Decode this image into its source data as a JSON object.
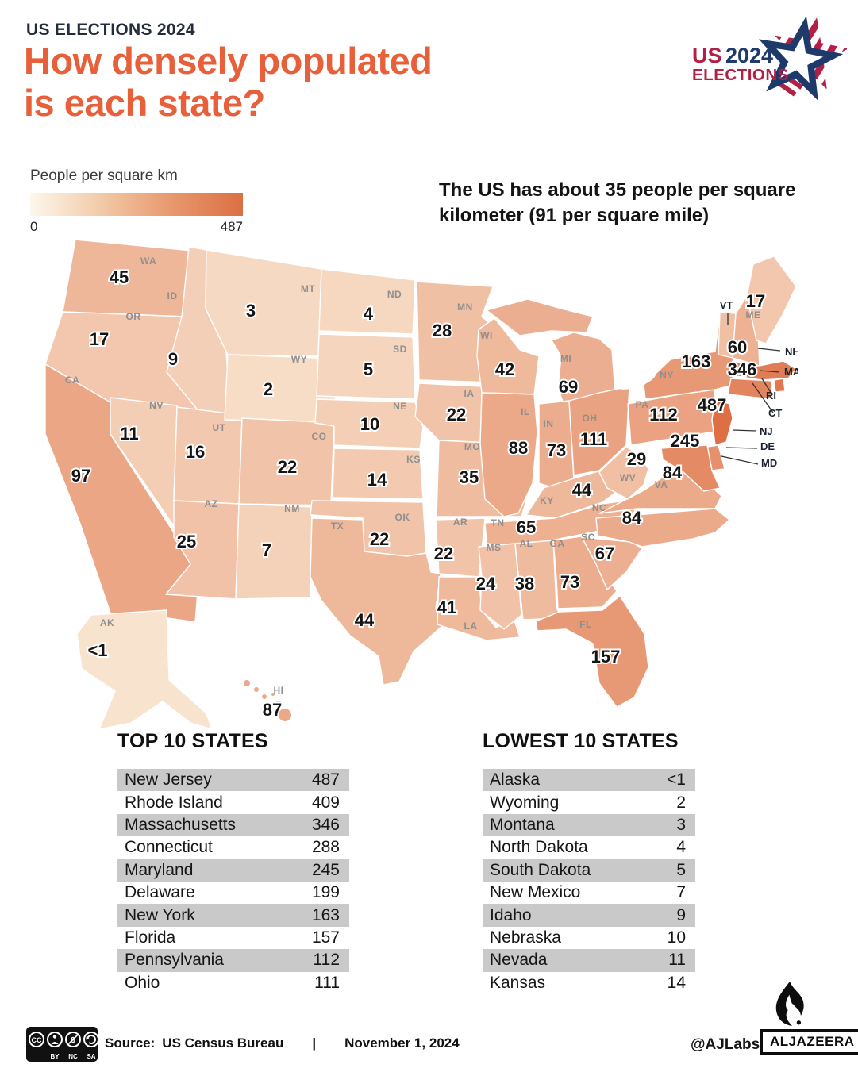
{
  "header": {
    "kicker": "US ELECTIONS 2024",
    "title_line1": "How densely populated",
    "title_line2": "is each state?"
  },
  "logo": {
    "us": "US",
    "year": "2024",
    "elections": "ELECTIONS"
  },
  "legend": {
    "label": "People per square km",
    "min": "0",
    "max": "487"
  },
  "annotation": "The US has about 35 people per square kilometer (91 per square mile)",
  "chart_data": {
    "type": "choropleth-map",
    "title": "People per square km",
    "unit": "people per square km",
    "color_scale": {
      "low": "#FBEFDC",
      "high": "#DE6F45",
      "domain": [
        0,
        487
      ],
      "exponent": 0.35
    },
    "states": [
      {
        "abbr": "WA",
        "name": "Washington",
        "value": 45,
        "map_label": "45"
      },
      {
        "abbr": "OR",
        "name": "Oregon",
        "value": 17,
        "map_label": "17"
      },
      {
        "abbr": "CA",
        "name": "California",
        "value": 97,
        "map_label": "97"
      },
      {
        "abbr": "NV",
        "name": "Nevada",
        "value": 11,
        "map_label": "11"
      },
      {
        "abbr": "ID",
        "name": "Idaho",
        "value": 9,
        "map_label": "9"
      },
      {
        "abbr": "UT",
        "name": "Utah",
        "value": 16,
        "map_label": "16"
      },
      {
        "abbr": "AZ",
        "name": "Arizona",
        "value": 25,
        "map_label": "25"
      },
      {
        "abbr": "MT",
        "name": "Montana",
        "value": 3,
        "map_label": "3"
      },
      {
        "abbr": "WY",
        "name": "Wyoming",
        "value": 2,
        "map_label": "2"
      },
      {
        "abbr": "CO",
        "name": "Colorado",
        "value": 22,
        "map_label": "22"
      },
      {
        "abbr": "NM",
        "name": "New Mexico",
        "value": 7,
        "map_label": "7"
      },
      {
        "abbr": "ND",
        "name": "North Dakota",
        "value": 4,
        "map_label": "4"
      },
      {
        "abbr": "SD",
        "name": "South Dakota",
        "value": 5,
        "map_label": "5"
      },
      {
        "abbr": "NE",
        "name": "Nebraska",
        "value": 10,
        "map_label": "10"
      },
      {
        "abbr": "KS",
        "name": "Kansas",
        "value": 14,
        "map_label": "14"
      },
      {
        "abbr": "OK",
        "name": "Oklahoma",
        "value": 22,
        "map_label": "22"
      },
      {
        "abbr": "TX",
        "name": "Texas",
        "value": 44,
        "map_label": "44"
      },
      {
        "abbr": "MN",
        "name": "Minnesota",
        "value": 28,
        "map_label": "28"
      },
      {
        "abbr": "IA",
        "name": "Iowa",
        "value": 22,
        "map_label": "22"
      },
      {
        "abbr": "MO",
        "name": "Missouri",
        "value": 35,
        "map_label": "35"
      },
      {
        "abbr": "AR",
        "name": "Arkansas",
        "value": 22,
        "map_label": "22"
      },
      {
        "abbr": "LA",
        "name": "Louisiana",
        "value": 41,
        "map_label": "41"
      },
      {
        "abbr": "WI",
        "name": "Wisconsin",
        "value": 42,
        "map_label": "42"
      },
      {
        "abbr": "IL",
        "name": "Illinois",
        "value": 88,
        "map_label": "88"
      },
      {
        "abbr": "MI",
        "name": "Michigan",
        "value": 69,
        "map_label": "69"
      },
      {
        "abbr": "IN",
        "name": "Indiana",
        "value": 73,
        "map_label": "73"
      },
      {
        "abbr": "OH",
        "name": "Ohio",
        "value": 111,
        "map_label": "111"
      },
      {
        "abbr": "KY",
        "name": "Kentucky",
        "value": 44,
        "map_label": "44"
      },
      {
        "abbr": "TN",
        "name": "Tennessee",
        "value": 65,
        "map_label": "65"
      },
      {
        "abbr": "MS",
        "name": "Mississippi",
        "value": 24,
        "map_label": "24"
      },
      {
        "abbr": "AL",
        "name": "Alabama",
        "value": 38,
        "map_label": "38"
      },
      {
        "abbr": "GA",
        "name": "Georgia",
        "value": 73,
        "map_label": "73"
      },
      {
        "abbr": "FL",
        "name": "Florida",
        "value": 157,
        "map_label": "157"
      },
      {
        "abbr": "SC",
        "name": "South Carolina",
        "value": 67,
        "map_label": "67"
      },
      {
        "abbr": "NC",
        "name": "North Carolina",
        "value": 84,
        "map_label": "84"
      },
      {
        "abbr": "VA",
        "name": "Virginia",
        "value": 84,
        "map_label": "84"
      },
      {
        "abbr": "WV",
        "name": "West Virginia",
        "value": 29,
        "map_label": "29"
      },
      {
        "abbr": "PA",
        "name": "Pennsylvania",
        "value": 112,
        "map_label": "112"
      },
      {
        "abbr": "NY",
        "name": "New York",
        "value": 163,
        "map_label": "163"
      },
      {
        "abbr": "VT",
        "name": "Vermont",
        "value": null,
        "map_label": null
      },
      {
        "abbr": "NH",
        "name": "New Hampshire",
        "value": 60,
        "map_label": "60"
      },
      {
        "abbr": "ME",
        "name": "Maine",
        "value": 17,
        "map_label": "17"
      },
      {
        "abbr": "MA",
        "name": "Massachusetts",
        "value": 346,
        "map_label": "346"
      },
      {
        "abbr": "RI",
        "name": "Rhode Island",
        "value": 409,
        "map_label": null
      },
      {
        "abbr": "CT",
        "name": "Connecticut",
        "value": 288,
        "map_label": null
      },
      {
        "abbr": "NJ",
        "name": "New Jersey",
        "value": 487,
        "map_label": "487"
      },
      {
        "abbr": "DE",
        "name": "Delaware",
        "value": 199,
        "map_label": null
      },
      {
        "abbr": "MD",
        "name": "Maryland",
        "value": 245,
        "map_label": "245"
      },
      {
        "abbr": "AK",
        "name": "Alaska",
        "value": "<1",
        "map_label": "<1"
      },
      {
        "abbr": "HI",
        "name": "Hawaii",
        "value": 87,
        "map_label": "87"
      }
    ]
  },
  "tables": {
    "top": {
      "title": "TOP 10 STATES",
      "rows": [
        {
          "name": "New Jersey",
          "value": "487"
        },
        {
          "name": "Rhode Island",
          "value": "409"
        },
        {
          "name": "Massachusetts",
          "value": "346"
        },
        {
          "name": "Connecticut",
          "value": "288"
        },
        {
          "name": "Maryland",
          "value": "245"
        },
        {
          "name": "Delaware",
          "value": "199"
        },
        {
          "name": "New York",
          "value": "163"
        },
        {
          "name": "Florida",
          "value": "157"
        },
        {
          "name": "Pennsylvania",
          "value": "112"
        },
        {
          "name": "Ohio",
          "value": "111"
        }
      ]
    },
    "lowest": {
      "title": "LOWEST 10 STATES",
      "rows": [
        {
          "name": "Alaska",
          "value": "<1"
        },
        {
          "name": "Wyoming",
          "value": "2"
        },
        {
          "name": "Montana",
          "value": "3"
        },
        {
          "name": "North Dakota",
          "value": "4"
        },
        {
          "name": "South Dakota",
          "value": "5"
        },
        {
          "name": "New Mexico",
          "value": "7"
        },
        {
          "name": "Idaho",
          "value": "9"
        },
        {
          "name": "Nebraska",
          "value": "10"
        },
        {
          "name": "Nevada",
          "value": "11"
        },
        {
          "name": "Kansas",
          "value": "14"
        }
      ]
    }
  },
  "footer": {
    "cc_labels": [
      "BY",
      "NC",
      "SA"
    ],
    "source_label": "Source:",
    "source": "US Census Bureau",
    "separator": "|",
    "date": "November 1, 2024",
    "credit": "@AJLabs",
    "brand": "ALJAZEERA"
  }
}
